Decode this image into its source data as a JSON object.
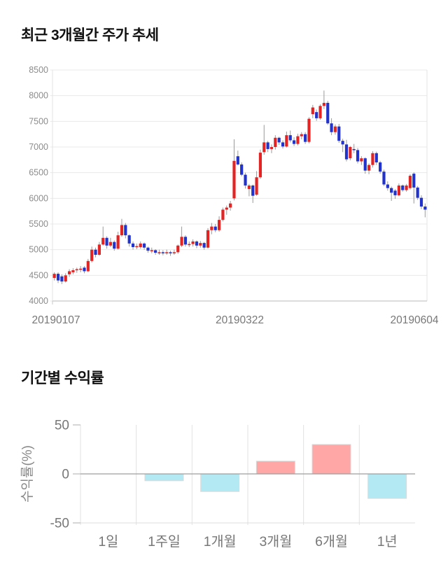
{
  "sections": {
    "price_trend": {
      "title": "최근 3개월간 주가 추세"
    },
    "returns": {
      "title": "기간별 수익률"
    }
  },
  "chart_data": [
    {
      "type": "candlestick",
      "title": "최근 3개월간 주가 추세",
      "ylim": [
        4000,
        8500
      ],
      "y_ticks": [
        8500,
        8000,
        7500,
        7000,
        6500,
        6000,
        5500,
        5000,
        4500,
        4000
      ],
      "x_tick_labels": [
        "20190107",
        "20190322",
        "20190604"
      ],
      "grid": "horizontal",
      "legend": "none",
      "colors": {
        "up": "#e32424",
        "down": "#2233cc",
        "wick": "#9a9a9a",
        "grid": "#e9e9e9",
        "axis": "#c8c8c8",
        "tick_text": "#8c8c8c",
        "x_text": "#777777"
      },
      "candles_ohlc": [
        [
          4450,
          4560,
          4400,
          4530
        ],
        [
          4530,
          4560,
          4350,
          4400
        ],
        [
          4480,
          4520,
          4330,
          4380
        ],
        [
          4380,
          4540,
          4360,
          4500
        ],
        [
          4520,
          4620,
          4470,
          4580
        ],
        [
          4560,
          4640,
          4520,
          4600
        ],
        [
          4600,
          4650,
          4550,
          4620
        ],
        [
          4610,
          4680,
          4560,
          4630
        ],
        [
          4650,
          4680,
          4540,
          4580
        ],
        [
          4580,
          4820,
          4560,
          4780
        ],
        [
          4780,
          5060,
          4750,
          5000
        ],
        [
          5000,
          5040,
          4850,
          4900
        ],
        [
          4900,
          5150,
          4880,
          5100
        ],
        [
          5100,
          5450,
          5080,
          5230
        ],
        [
          5230,
          5260,
          5020,
          5080
        ],
        [
          5080,
          5230,
          5050,
          5150
        ],
        [
          5150,
          5180,
          4980,
          5020
        ],
        [
          5020,
          5350,
          5000,
          5280
        ],
        [
          5280,
          5600,
          5250,
          5480
        ],
        [
          5480,
          5520,
          5220,
          5280
        ],
        [
          5280,
          5300,
          5060,
          5120
        ],
        [
          5120,
          5160,
          5000,
          5050
        ],
        [
          5060,
          5120,
          5010,
          5070
        ],
        [
          5050,
          5160,
          5020,
          5120
        ],
        [
          5120,
          5140,
          5000,
          5040
        ],
        [
          5040,
          5060,
          4940,
          4980
        ],
        [
          4980,
          5040,
          4930,
          4990
        ],
        [
          4990,
          5010,
          4900,
          4940
        ],
        [
          4940,
          5000,
          4900,
          4950
        ],
        [
          4950,
          4990,
          4890,
          4940
        ],
        [
          4940,
          5000,
          4900,
          4950
        ],
        [
          4950,
          4980,
          4880,
          4940
        ],
        [
          4940,
          5000,
          4900,
          4950
        ],
        [
          4950,
          5100,
          4920,
          5080
        ],
        [
          5080,
          5450,
          5050,
          5250
        ],
        [
          5250,
          5280,
          5060,
          5100
        ],
        [
          5100,
          5160,
          5050,
          5110
        ],
        [
          5110,
          5200,
          5060,
          5160
        ],
        [
          5160,
          5180,
          5030,
          5080
        ],
        [
          5080,
          5170,
          5040,
          5130
        ],
        [
          5130,
          5150,
          5000,
          5040
        ],
        [
          5040,
          5420,
          5020,
          5380
        ],
        [
          5380,
          5520,
          5300,
          5450
        ],
        [
          5450,
          5500,
          5340,
          5380
        ],
        [
          5380,
          5650,
          5350,
          5580
        ],
        [
          5580,
          5820,
          5550,
          5780
        ],
        [
          5780,
          5860,
          5680,
          5820
        ],
        [
          5820,
          5950,
          5760,
          5900
        ],
        [
          6000,
          7150,
          5960,
          6730
        ],
        [
          6820,
          6930,
          6640,
          6660
        ],
        [
          6660,
          6700,
          6430,
          6460
        ],
        [
          6460,
          6500,
          6190,
          6250
        ],
        [
          6180,
          6280,
          6040,
          6250
        ],
        [
          6250,
          6270,
          5910,
          6050
        ],
        [
          6070,
          6530,
          6050,
          6410
        ],
        [
          6410,
          6950,
          6380,
          6890
        ],
        [
          6900,
          7430,
          6850,
          7090
        ],
        [
          7090,
          7120,
          6900,
          6960
        ],
        [
          6960,
          7050,
          6880,
          7000
        ],
        [
          7000,
          7230,
          6950,
          7180
        ],
        [
          7180,
          7200,
          7040,
          7090
        ],
        [
          7090,
          7130,
          6970,
          7010
        ],
        [
          7010,
          7300,
          6990,
          7230
        ],
        [
          7230,
          7320,
          7090,
          7130
        ],
        [
          7130,
          7190,
          7020,
          7060
        ],
        [
          7060,
          7260,
          7030,
          7210
        ],
        [
          7210,
          7290,
          7150,
          7250
        ],
        [
          7250,
          7290,
          7060,
          7100
        ],
        [
          7100,
          7580,
          7070,
          7550
        ],
        [
          7640,
          7820,
          7560,
          7770
        ],
        [
          7680,
          7730,
          7510,
          7560
        ],
        [
          7560,
          7830,
          7530,
          7800
        ],
        [
          7800,
          8100,
          7740,
          7860
        ],
        [
          7860,
          7900,
          7430,
          7460
        ],
        [
          7460,
          7560,
          7230,
          7290
        ],
        [
          7290,
          7440,
          7240,
          7400
        ],
        [
          7400,
          7450,
          7080,
          7120
        ],
        [
          7120,
          7160,
          6900,
          7050
        ],
        [
          7050,
          7140,
          6720,
          6760
        ],
        [
          6780,
          7020,
          6740,
          7000
        ],
        [
          6960,
          7060,
          6880,
          6940
        ],
        [
          6940,
          6980,
          6680,
          6720
        ],
        [
          6720,
          6820,
          6650,
          6780
        ],
        [
          6780,
          6800,
          6480,
          6540
        ],
        [
          6540,
          6680,
          6470,
          6650
        ],
        [
          6650,
          6920,
          6600,
          6880
        ],
        [
          6880,
          6910,
          6650,
          6700
        ],
        [
          6700,
          6730,
          6480,
          6520
        ],
        [
          6520,
          6560,
          6240,
          6270
        ],
        [
          6270,
          6330,
          6150,
          6200
        ],
        [
          6200,
          6230,
          5950,
          6110
        ],
        [
          6150,
          6180,
          5990,
          6060
        ],
        [
          6060,
          6290,
          6040,
          6250
        ],
        [
          6250,
          6270,
          6130,
          6160
        ],
        [
          6160,
          6280,
          6130,
          6250
        ],
        [
          6200,
          6470,
          6170,
          6440
        ],
        [
          6480,
          6510,
          5900,
          6210
        ],
        [
          6210,
          6240,
          5970,
          6010
        ],
        [
          6010,
          6060,
          5790,
          5840
        ],
        [
          5840,
          5900,
          5630,
          5780
        ]
      ]
    },
    {
      "type": "bar",
      "title": "기간별 수익률",
      "categories": [
        "1일",
        "1주일",
        "1개월",
        "3개월",
        "6개월",
        "1년"
      ],
      "values": [
        0,
        -7,
        -18,
        13,
        30,
        -25
      ],
      "ylabel": "수익률(%)",
      "xlabel": "",
      "y_ticks": [
        50,
        0,
        -50
      ],
      "ylim": [
        -50,
        50
      ],
      "grid": "vertical-separators",
      "legend": "none",
      "colors": {
        "positive": "#ffa6a6",
        "negative": "#b3e9f3",
        "bar_border": "#dadada",
        "grid": "#e2e2e2",
        "zero_line": "#9e9e9e",
        "bottom_line": "#dcdcdc",
        "tick_text": "#777777",
        "ylabel_text": "#888888"
      }
    }
  ]
}
